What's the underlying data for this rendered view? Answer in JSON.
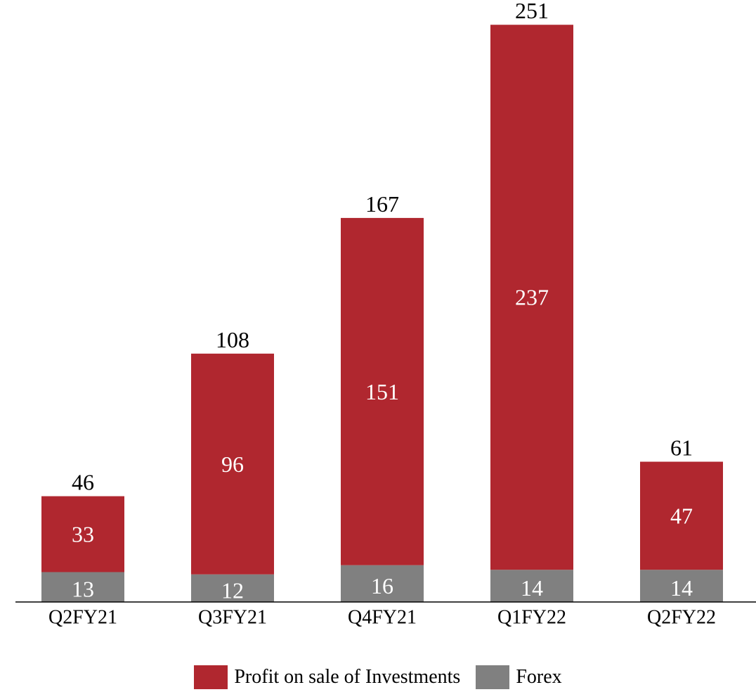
{
  "chart_data": {
    "type": "bar",
    "stacked": true,
    "categories": [
      "Q2FY21",
      "Q3FY21",
      "Q4FY21",
      "Q1FY22",
      "Q2FY22"
    ],
    "series": [
      {
        "name": "Forex",
        "values": [
          13,
          12,
          16,
          14,
          14
        ],
        "color": "#808080"
      },
      {
        "name": "Profit on sale of Investments",
        "values": [
          33,
          96,
          151,
          237,
          47
        ],
        "color": "#B0272F"
      }
    ],
    "totals": [
      46,
      108,
      167,
      251,
      61
    ],
    "legend_position": "bottom",
    "grid": false,
    "title": "",
    "xlabel": "",
    "ylabel": ""
  }
}
